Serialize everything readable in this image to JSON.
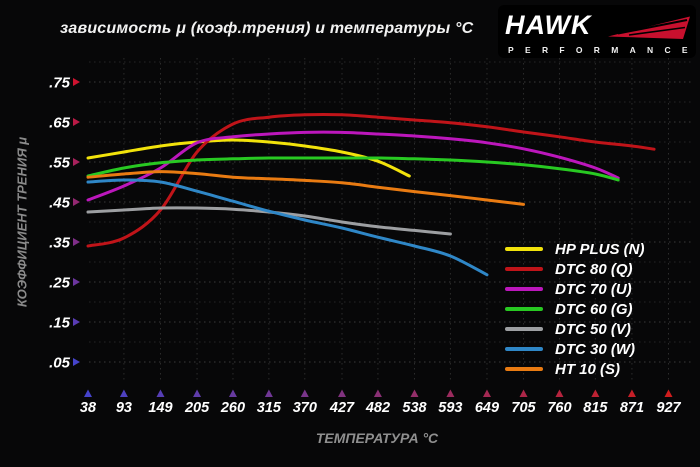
{
  "title": "зависимость μ (коэф.трения) и температуры °C",
  "logo": {
    "brand": "HAWK",
    "subtitle": "PERFORMANCE",
    "wing_color": "#c8102e"
  },
  "chart_data": {
    "type": "line",
    "title": "зависимость μ (коэф.трения) и температуры °C",
    "xlabel": "ТЕМПЕРАТУРА °C",
    "ylabel": "КОЭФФИЦИЕНТ ТРЕНИЯ μ",
    "x_ticks": [
      38,
      93,
      149,
      205,
      260,
      315,
      370,
      427,
      482,
      538,
      593,
      649,
      705,
      760,
      815,
      871,
      927
    ],
    "y_tick_labels": [
      ".75",
      ".65",
      ".55",
      ".45",
      ".35",
      ".25",
      ".15",
      ".05"
    ],
    "y_tick_values": [
      0.75,
      0.65,
      0.55,
      0.45,
      0.35,
      0.25,
      0.15,
      0.05
    ],
    "xlim": [
      38,
      927
    ],
    "ylim": [
      0,
      0.8
    ],
    "grid": true,
    "legend_position": "right-middle",
    "axis_colors": {
      "x_gradient": [
        "#4038c4",
        "#c81d1d"
      ],
      "y_gradient": [
        "#cf1325",
        "#4038c4"
      ],
      "x_arrow_gradient": [
        "#4543cb",
        "#cf1d1d"
      ],
      "y_arrow_gradient": [
        "#cf1330",
        "#4543cb"
      ]
    },
    "series": [
      {
        "name": "HP PLUS (N)",
        "color": "#f2e30b",
        "points": [
          [
            38,
            0.56
          ],
          [
            93,
            0.575
          ],
          [
            149,
            0.59
          ],
          [
            205,
            0.6
          ],
          [
            260,
            0.605
          ],
          [
            315,
            0.6
          ],
          [
            370,
            0.59
          ],
          [
            427,
            0.575
          ],
          [
            482,
            0.552
          ],
          [
            530,
            0.515
          ]
        ]
      },
      {
        "name": "DTC 80 (Q)",
        "color": "#c01419",
        "points": [
          [
            38,
            0.34
          ],
          [
            93,
            0.36
          ],
          [
            149,
            0.43
          ],
          [
            205,
            0.575
          ],
          [
            260,
            0.645
          ],
          [
            315,
            0.662
          ],
          [
            370,
            0.668
          ],
          [
            427,
            0.668
          ],
          [
            482,
            0.662
          ],
          [
            538,
            0.655
          ],
          [
            593,
            0.648
          ],
          [
            649,
            0.638
          ],
          [
            705,
            0.625
          ],
          [
            760,
            0.613
          ],
          [
            815,
            0.6
          ],
          [
            871,
            0.59
          ],
          [
            905,
            0.582
          ]
        ]
      },
      {
        "name": "DTC 70 (U)",
        "color": "#bc17bc",
        "points": [
          [
            38,
            0.455
          ],
          [
            93,
            0.49
          ],
          [
            149,
            0.535
          ],
          [
            205,
            0.598
          ],
          [
            260,
            0.613
          ],
          [
            315,
            0.62
          ],
          [
            370,
            0.624
          ],
          [
            427,
            0.624
          ],
          [
            482,
            0.62
          ],
          [
            538,
            0.615
          ],
          [
            593,
            0.608
          ],
          [
            649,
            0.598
          ],
          [
            705,
            0.583
          ],
          [
            760,
            0.562
          ],
          [
            815,
            0.535
          ],
          [
            850,
            0.51
          ]
        ]
      },
      {
        "name": "DTC 60 (G)",
        "color": "#28c922",
        "points": [
          [
            38,
            0.515
          ],
          [
            93,
            0.535
          ],
          [
            149,
            0.548
          ],
          [
            205,
            0.555
          ],
          [
            260,
            0.558
          ],
          [
            315,
            0.56
          ],
          [
            370,
            0.56
          ],
          [
            427,
            0.56
          ],
          [
            482,
            0.56
          ],
          [
            538,
            0.558
          ],
          [
            593,
            0.555
          ],
          [
            649,
            0.55
          ],
          [
            705,
            0.543
          ],
          [
            760,
            0.533
          ],
          [
            815,
            0.52
          ],
          [
            850,
            0.505
          ]
        ]
      },
      {
        "name": "DTC 50 (V)",
        "color": "#9d9fa2",
        "points": [
          [
            38,
            0.425
          ],
          [
            93,
            0.43
          ],
          [
            149,
            0.435
          ],
          [
            205,
            0.435
          ],
          [
            260,
            0.432
          ],
          [
            315,
            0.425
          ],
          [
            370,
            0.415
          ],
          [
            427,
            0.4
          ],
          [
            482,
            0.388
          ],
          [
            538,
            0.379
          ],
          [
            593,
            0.37
          ]
        ]
      },
      {
        "name": "DTC 30 (W)",
        "color": "#2f87c7",
        "points": [
          [
            38,
            0.5
          ],
          [
            93,
            0.505
          ],
          [
            149,
            0.5
          ],
          [
            205,
            0.477
          ],
          [
            260,
            0.452
          ],
          [
            315,
            0.427
          ],
          [
            370,
            0.405
          ],
          [
            427,
            0.385
          ],
          [
            482,
            0.362
          ],
          [
            538,
            0.34
          ],
          [
            593,
            0.315
          ],
          [
            649,
            0.268
          ]
        ]
      },
      {
        "name": "HT 10 (S)",
        "color": "#e97b12",
        "points": [
          [
            38,
            0.512
          ],
          [
            93,
            0.52
          ],
          [
            149,
            0.526
          ],
          [
            205,
            0.521
          ],
          [
            260,
            0.512
          ],
          [
            315,
            0.508
          ],
          [
            370,
            0.504
          ],
          [
            427,
            0.498
          ],
          [
            482,
            0.487
          ],
          [
            538,
            0.476
          ],
          [
            593,
            0.466
          ],
          [
            649,
            0.455
          ],
          [
            705,
            0.444
          ]
        ]
      }
    ]
  }
}
